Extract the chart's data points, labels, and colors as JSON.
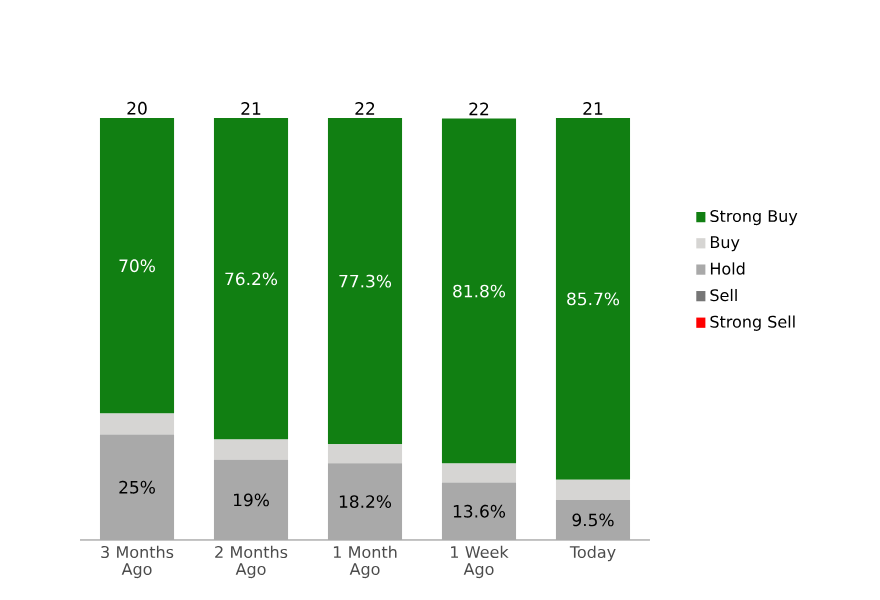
{
  "chart_data": {
    "type": "bar",
    "stacked": true,
    "legend": "right",
    "categories": [
      "3 Months Ago",
      "2 Months Ago",
      "1 Month Ago",
      "1 Week Ago",
      "Today"
    ],
    "series": [
      {
        "name": "Strong Sell",
        "color": "#ff0000",
        "values": [
          0,
          0,
          0,
          0,
          0
        ]
      },
      {
        "name": "Sell",
        "color": "#767676",
        "values": [
          0,
          0,
          0,
          0,
          0
        ]
      },
      {
        "name": "Hold",
        "color": "#a9a9a9",
        "values": [
          25,
          19,
          18.2,
          13.6,
          9.5
        ],
        "value_labels": [
          "25%",
          "19%",
          "18.2%",
          "13.6%",
          "9.5%"
        ]
      },
      {
        "name": "Buy",
        "color": "#d6d5d3",
        "values": [
          5,
          4.8,
          4.5,
          4.5,
          4.8
        ]
      },
      {
        "name": "Strong Buy",
        "color": "#117f12",
        "values": [
          70,
          76.2,
          77.3,
          81.8,
          85.7
        ],
        "value_labels": [
          "70%",
          "76.2%",
          "77.3%",
          "81.8%",
          "85.7%"
        ]
      }
    ],
    "annotations": [
      "20",
      "21",
      "22",
      "22",
      "21"
    ]
  }
}
